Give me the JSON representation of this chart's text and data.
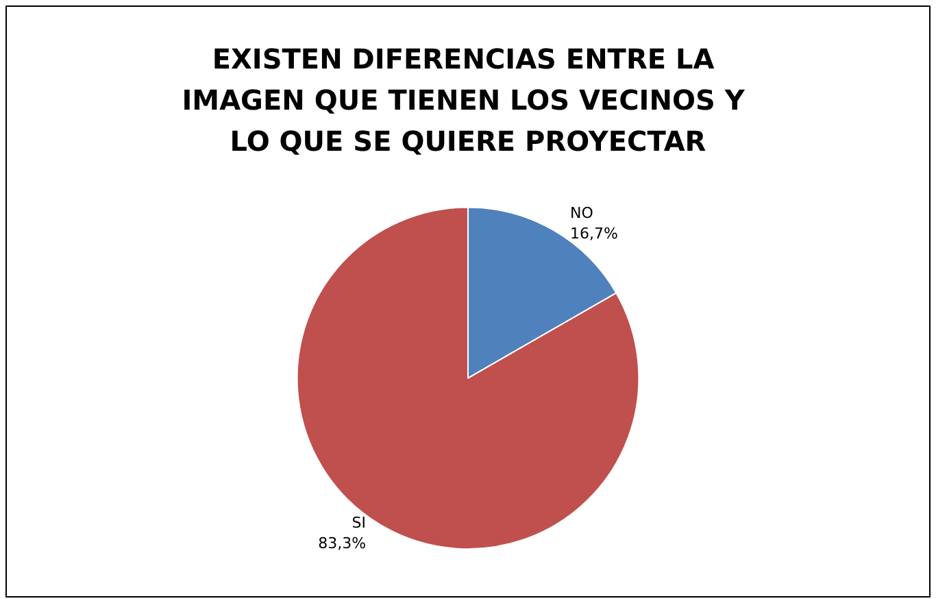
{
  "chart_data": {
    "type": "pie",
    "title": "EXISTEN DIFERENCIAS ENTRE LA IMAGEN QUE TIENEN LOS VECINOS Y LO QUE SE QUIERE PROYECTAR",
    "categories": [
      "NO",
      "SI"
    ],
    "values": [
      16.7,
      83.3
    ],
    "colors": [
      "#4f81bd",
      "#c0504d"
    ],
    "value_labels": [
      "16,7%",
      "83,3%"
    ],
    "legend": false
  }
}
